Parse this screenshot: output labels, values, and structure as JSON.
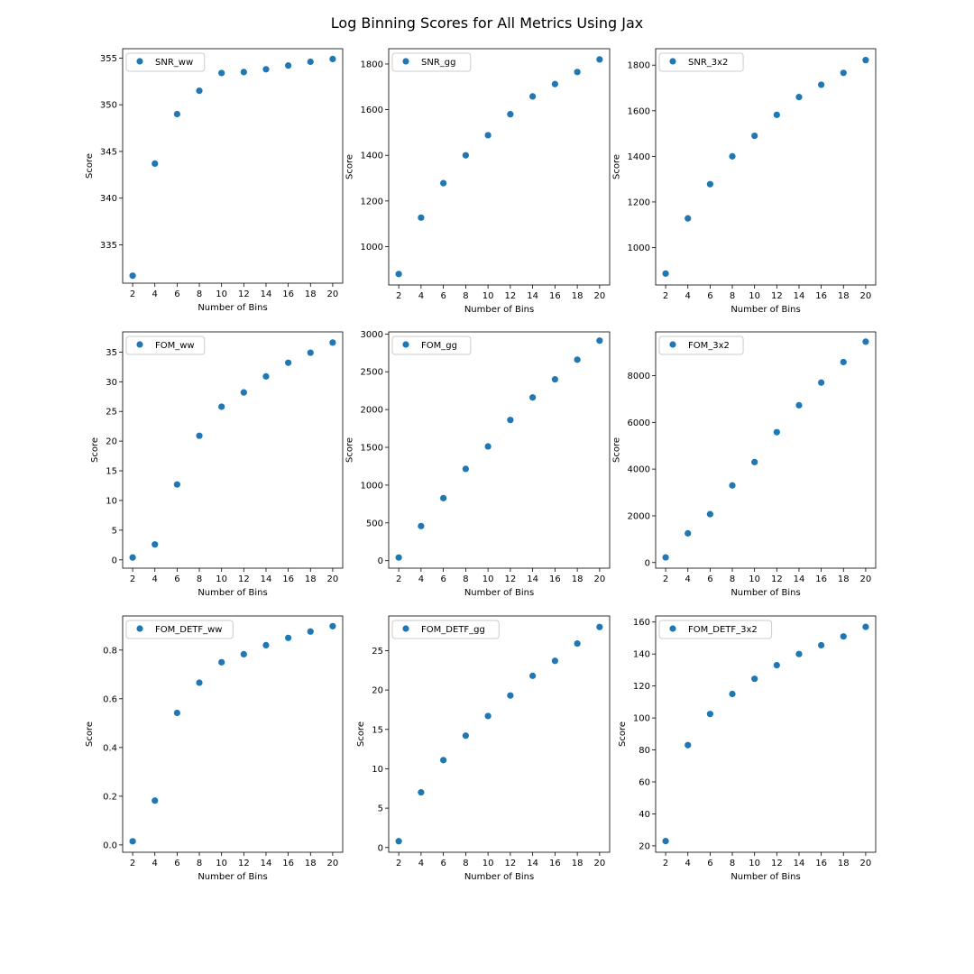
{
  "figure": {
    "title": "Log Binning Scores for All Metrics Using Jax",
    "marker_color": "#1f77b4"
  },
  "chart_data": [
    {
      "type": "scatter",
      "xlabel": "Number of Bins",
      "ylabel": "Score",
      "x": [
        2,
        4,
        6,
        8,
        10,
        12,
        14,
        16,
        18,
        20
      ],
      "xticks": [
        2,
        4,
        6,
        8,
        10,
        12,
        14,
        16,
        18,
        20
      ],
      "xlim": [
        1.1,
        20.9
      ],
      "ylim": [
        330.9,
        356.0
      ],
      "yticks": [
        335,
        340,
        345,
        350,
        355
      ],
      "yticklabels": [
        "335",
        "340",
        "345",
        "350",
        "355"
      ],
      "legend_loc": "upper left",
      "series": [
        {
          "name": "SNR_ww",
          "values": [
            331.7,
            343.7,
            349.0,
            351.5,
            353.4,
            353.5,
            353.8,
            354.2,
            354.6,
            354.9
          ]
        }
      ]
    },
    {
      "type": "scatter",
      "xlabel": "Number of Bins",
      "ylabel": "Score",
      "x": [
        2,
        4,
        6,
        8,
        10,
        12,
        14,
        16,
        18,
        20
      ],
      "xticks": [
        2,
        4,
        6,
        8,
        10,
        12,
        14,
        16,
        18,
        20
      ],
      "xlim": [
        1.1,
        20.9
      ],
      "ylim": [
        832,
        1867
      ],
      "yticks": [
        1000,
        1200,
        1400,
        1600,
        1800
      ],
      "yticklabels": [
        "1000",
        "1200",
        "1400",
        "1600",
        "1800"
      ],
      "legend_loc": "upper left",
      "series": [
        {
          "name": "SNR_gg",
          "values": [
            880,
            1127,
            1278,
            1400,
            1488,
            1580,
            1658,
            1712,
            1765,
            1820
          ]
        }
      ]
    },
    {
      "type": "scatter",
      "xlabel": "Number of Bins",
      "ylabel": "Score",
      "x": [
        2,
        4,
        6,
        8,
        10,
        12,
        14,
        16,
        18,
        20
      ],
      "xticks": [
        2,
        4,
        6,
        8,
        10,
        12,
        14,
        16,
        18,
        20
      ],
      "xlim": [
        1.1,
        20.9
      ],
      "ylim": [
        836,
        1872
      ],
      "yticks": [
        1000,
        1200,
        1400,
        1600,
        1800
      ],
      "yticklabels": [
        "1000",
        "1200",
        "1400",
        "1600",
        "1800"
      ],
      "legend_loc": "upper left",
      "series": [
        {
          "name": "SNR_3x2",
          "values": [
            886,
            1128,
            1278,
            1400,
            1490,
            1582,
            1660,
            1714,
            1766,
            1822
          ]
        }
      ]
    },
    {
      "type": "scatter",
      "xlabel": "Number of Bins",
      "ylabel": "Score",
      "x": [
        2,
        4,
        6,
        8,
        10,
        12,
        14,
        16,
        18,
        20
      ],
      "xticks": [
        2,
        4,
        6,
        8,
        10,
        12,
        14,
        16,
        18,
        20
      ],
      "xlim": [
        1.1,
        20.9
      ],
      "ylim": [
        -1.4,
        38.4
      ],
      "yticks": [
        0,
        5,
        10,
        15,
        20,
        25,
        30,
        35
      ],
      "yticklabels": [
        "0",
        "5",
        "10",
        "15",
        "20",
        "25",
        "30",
        "35"
      ],
      "legend_loc": "upper left",
      "series": [
        {
          "name": "FOM_ww",
          "values": [
            0.4,
            2.6,
            12.7,
            20.9,
            25.8,
            28.2,
            30.9,
            33.2,
            34.9,
            36.6
          ]
        }
      ]
    },
    {
      "type": "scatter",
      "xlabel": "Number of Bins",
      "ylabel": "Score",
      "x": [
        2,
        4,
        6,
        8,
        10,
        12,
        14,
        16,
        18,
        20
      ],
      "xticks": [
        2,
        4,
        6,
        8,
        10,
        12,
        14,
        16,
        18,
        20
      ],
      "xlim": [
        1.1,
        20.9
      ],
      "ylim": [
        -99,
        3028
      ],
      "yticks": [
        0,
        500,
        1000,
        1500,
        2000,
        2500,
        3000
      ],
      "yticklabels": [
        "0",
        "500",
        "1000",
        "1500",
        "2000",
        "2500",
        "3000"
      ],
      "legend_loc": "upper left",
      "series": [
        {
          "name": "FOM_gg",
          "values": [
            42,
            458,
            828,
            1215,
            1512,
            1862,
            2160,
            2400,
            2660,
            2912
          ]
        }
      ]
    },
    {
      "type": "scatter",
      "xlabel": "Number of Bins",
      "ylabel": "Score",
      "x": [
        2,
        4,
        6,
        8,
        10,
        12,
        14,
        16,
        18,
        20
      ],
      "xticks": [
        2,
        4,
        6,
        8,
        10,
        12,
        14,
        16,
        18,
        20
      ],
      "xlim": [
        1.1,
        20.9
      ],
      "ylim": [
        -240,
        9870
      ],
      "yticks": [
        0,
        2000,
        4000,
        6000,
        8000
      ],
      "yticklabels": [
        "0",
        "2000",
        "4000",
        "6000",
        "8000"
      ],
      "legend_loc": "upper left",
      "series": [
        {
          "name": "FOM_3x2",
          "values": [
            220,
            1250,
            2070,
            3300,
            4300,
            5580,
            6730,
            7700,
            8580,
            9450
          ]
        }
      ]
    },
    {
      "type": "scatter",
      "xlabel": "Number of Bins",
      "ylabel": "Score",
      "x": [
        2,
        4,
        6,
        8,
        10,
        12,
        14,
        16,
        18,
        20
      ],
      "xticks": [
        2,
        4,
        6,
        8,
        10,
        12,
        14,
        16,
        18,
        20
      ],
      "xlim": [
        1.1,
        20.9
      ],
      "ylim": [
        -0.03,
        0.94
      ],
      "yticks": [
        0.0,
        0.2,
        0.4,
        0.6,
        0.8
      ],
      "yticklabels": [
        "0.0",
        "0.2",
        "0.4",
        "0.6",
        "0.8"
      ],
      "legend_loc": "upper left",
      "series": [
        {
          "name": "FOM_DETF_ww",
          "values": [
            0.015,
            0.182,
            0.542,
            0.666,
            0.75,
            0.783,
            0.82,
            0.85,
            0.876,
            0.898
          ]
        }
      ]
    },
    {
      "type": "scatter",
      "xlabel": "Number of Bins",
      "ylabel": "Score",
      "x": [
        2,
        4,
        6,
        8,
        10,
        12,
        14,
        16,
        18,
        20
      ],
      "xticks": [
        2,
        4,
        6,
        8,
        10,
        12,
        14,
        16,
        18,
        20
      ],
      "xlim": [
        1.1,
        20.9
      ],
      "ylim": [
        -0.6,
        29.4
      ],
      "yticks": [
        0,
        5,
        10,
        15,
        20,
        25
      ],
      "yticklabels": [
        "0",
        "5",
        "10",
        "15",
        "20",
        "25"
      ],
      "legend_loc": "upper left",
      "series": [
        {
          "name": "FOM_DETF_gg",
          "values": [
            0.8,
            7.0,
            11.1,
            14.2,
            16.7,
            19.3,
            21.8,
            23.7,
            25.9,
            28.0
          ]
        }
      ]
    },
    {
      "type": "scatter",
      "xlabel": "Number of Bins",
      "ylabel": "Score",
      "x": [
        2,
        4,
        6,
        8,
        10,
        12,
        14,
        16,
        18,
        20
      ],
      "xticks": [
        2,
        4,
        6,
        8,
        10,
        12,
        14,
        16,
        18,
        20
      ],
      "xlim": [
        1.1,
        20.9
      ],
      "ylim": [
        16,
        163.8
      ],
      "yticks": [
        20,
        40,
        60,
        80,
        100,
        120,
        140,
        160
      ],
      "yticklabels": [
        "20",
        "40",
        "60",
        "80",
        "100",
        "120",
        "140",
        "160"
      ],
      "legend_loc": "upper left",
      "series": [
        {
          "name": "FOM_DETF_3x2",
          "values": [
            23,
            83,
            102.5,
            115,
            124.5,
            133,
            140,
            145.5,
            151,
            157
          ]
        }
      ]
    }
  ]
}
